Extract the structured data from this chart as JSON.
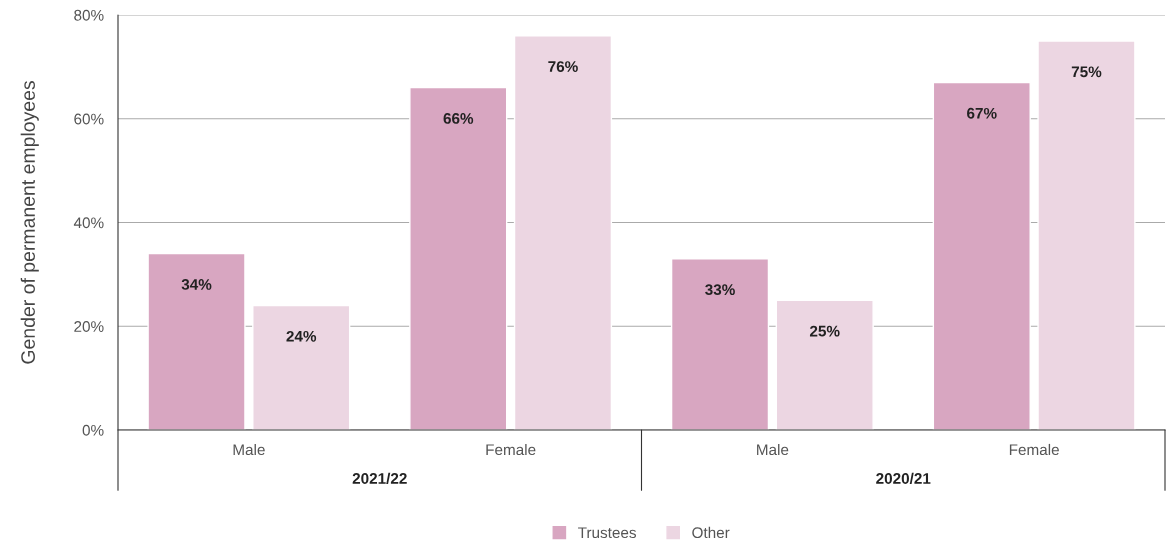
{
  "chart_data": {
    "type": "bar",
    "ylabel": "Gender of permanent employees",
    "categories": [
      "Male",
      "Female",
      "Male",
      "Female"
    ],
    "annotations": [
      "2021/22",
      "2020/21"
    ],
    "series": [
      {
        "name": "Trustees",
        "color": "#d8a6c1",
        "values": [
          34,
          66,
          33,
          67
        ],
        "value_labels": [
          "34%",
          "66%",
          "33%",
          "67%"
        ]
      },
      {
        "name": "Other",
        "color": "#ecd6e2",
        "values": [
          24,
          76,
          25,
          75
        ],
        "value_labels": [
          "24%",
          "76%",
          "25%",
          "75%"
        ]
      }
    ],
    "ylim": [
      0,
      80
    ],
    "yticks": [
      {
        "value": 0,
        "label": "0%"
      },
      {
        "value": 20,
        "label": "20%"
      },
      {
        "value": 40,
        "label": "40%"
      },
      {
        "value": 60,
        "label": "60%"
      },
      {
        "value": 80,
        "label": "80%"
      }
    ],
    "grid": "y",
    "legend": "bottom"
  }
}
